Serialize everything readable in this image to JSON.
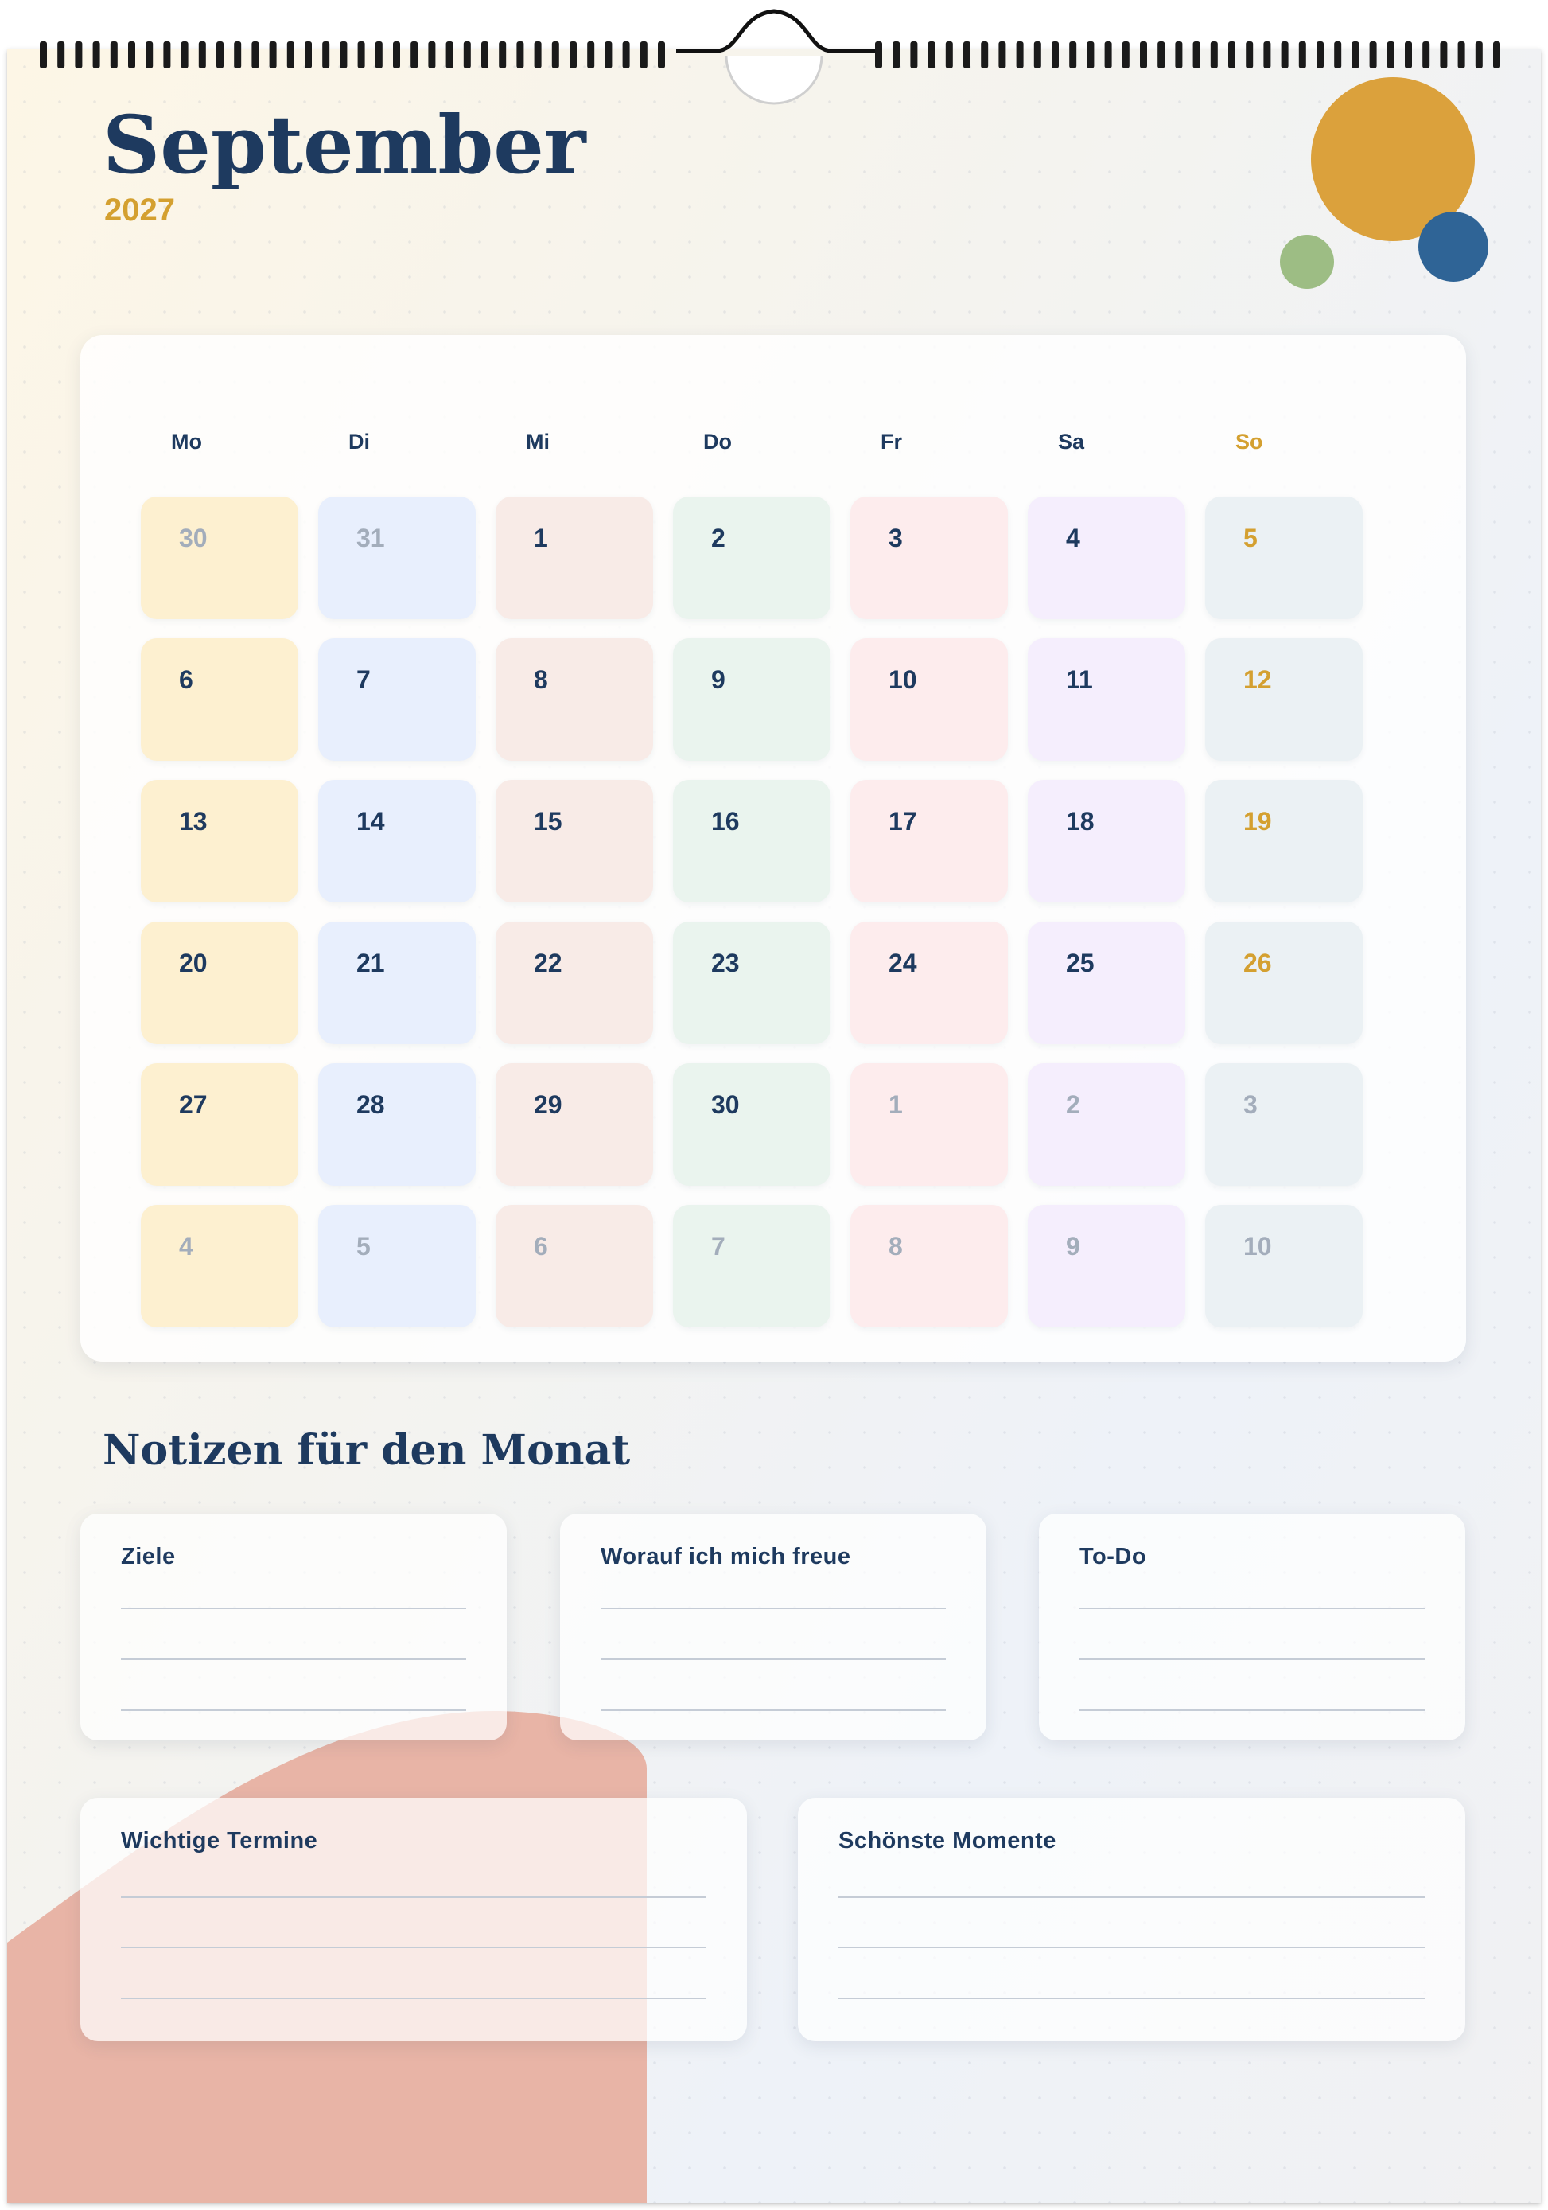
{
  "header": {
    "month": "September",
    "year": "2027"
  },
  "calendar": {
    "weekdays": [
      "Mo",
      "Di",
      "Mi",
      "Do",
      "Fr",
      "Sa",
      "So"
    ],
    "weeks": [
      [
        "30",
        "31",
        "1",
        "2",
        "3",
        "4",
        "5"
      ],
      [
        "6",
        "7",
        "8",
        "9",
        "10",
        "11",
        "12"
      ],
      [
        "13",
        "14",
        "15",
        "16",
        "17",
        "18",
        "19"
      ],
      [
        "20",
        "21",
        "22",
        "23",
        "24",
        "25",
        "26"
      ],
      [
        "27",
        "28",
        "29",
        "30",
        "1",
        "2",
        "3"
      ],
      [
        "4",
        "5",
        "6",
        "7",
        "8",
        "9",
        "10"
      ]
    ]
  },
  "notes": {
    "title": "Notizen für den Monat",
    "boxes": [
      "Ziele",
      "Worauf ich mich freue",
      "To-Do",
      "Wichtige Termine",
      "Schönste Momente"
    ]
  }
}
